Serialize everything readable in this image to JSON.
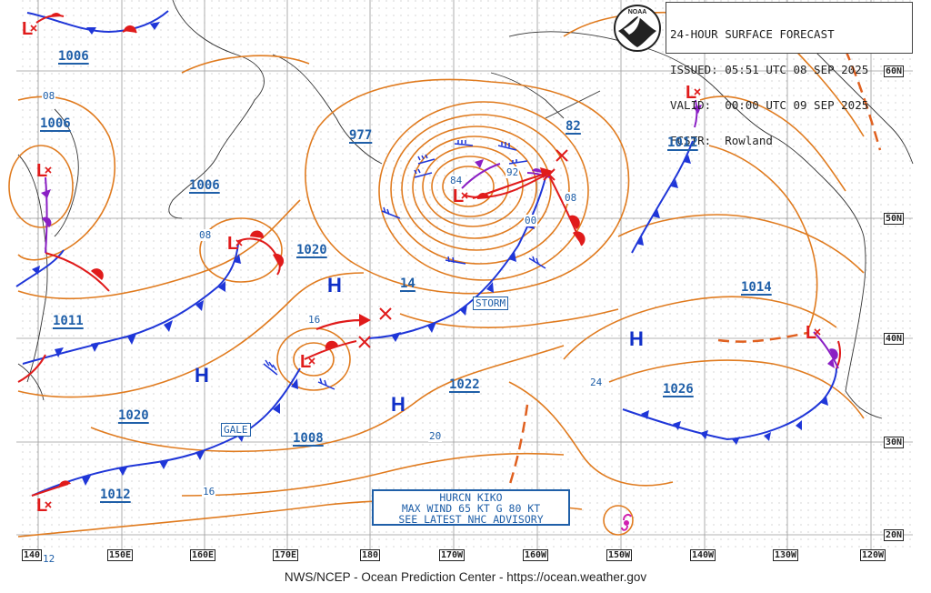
{
  "header": {
    "line1": "24-HOUR SURFACE FORECAST",
    "line2": "ISSUED: 05:51 UTC 08 SEP 2025",
    "line3": "VALID:  00:00 UTC 09 SEP 2025",
    "line4": "FCSTR:  Rowland",
    "logo_text": "NOAA"
  },
  "footer": "NWS/NCEP - Ocean Prediction Center - https://ocean.weather.gov",
  "advisory": {
    "line1": "HURCN KIKO",
    "line2": "MAX WIND 65 KT G 80 KT",
    "line3": "SEE LATEST NHC ADVISORY"
  },
  "latitude_labels": [
    "60N",
    "50N",
    "40N",
    "30N",
    "20N"
  ],
  "longitude_labels": [
    "140",
    "150E",
    "160E",
    "170E",
    "180",
    "170W",
    "160W",
    "150W",
    "140W",
    "130W",
    "120W"
  ],
  "pressure_labels": [
    "1006",
    "1006",
    "1006",
    "1011",
    "1020",
    "1020",
    "1012",
    "1008",
    "977",
    "14",
    "82",
    "1012",
    "1022",
    "1014",
    "1026"
  ],
  "isobar_labels": [
    "08",
    "08",
    "16",
    "84",
    "92",
    "00",
    "08",
    "24",
    "20",
    "16",
    "12"
  ],
  "highs": [
    "H",
    "H",
    "H",
    "H"
  ],
  "lows": [
    "L",
    "L",
    "L",
    "L",
    "L",
    "L"
  ],
  "warning_boxes": [
    "GALE",
    "STORM"
  ],
  "colors": {
    "isobar": "#e07b1f",
    "cold_front": "#1f36d8",
    "warm_front": "#e01b1b",
    "occluded": "#8a1fc4",
    "label": "#1f5fa8",
    "trough": "#e0601f"
  }
}
